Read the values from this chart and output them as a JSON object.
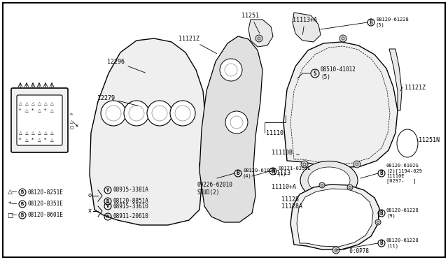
{
  "bg_color": "#ffffff",
  "border_color": "#000000",
  "text_color": "#000000",
  "fig_w": 6.4,
  "fig_h": 3.72,
  "dpi": 100,
  "xlim": [
    0,
    640
  ],
  "ylim": [
    0,
    372
  ],
  "legend_left": [
    {
      "sym": "△",
      "part": "08120-8251E",
      "y": 100
    },
    {
      "sym": "*",
      "part": "08120-8351E",
      "y": 82
    },
    {
      "sym": "□",
      "part": "08120-8601E",
      "y": 64
    }
  ],
  "legend_right_top": {
    "connector": "o",
    "items": [
      {
        "sym": "V",
        "part": "08915-3381A"
      },
      {
        "sym": "B",
        "part": "08120-8851A"
      }
    ]
  },
  "legend_right_bottom": {
    "connector": "x",
    "items": [
      {
        "sym": "V",
        "part": "08915-33610"
      },
      {
        "sym": "N",
        "part": "08911-20610"
      }
    ]
  }
}
